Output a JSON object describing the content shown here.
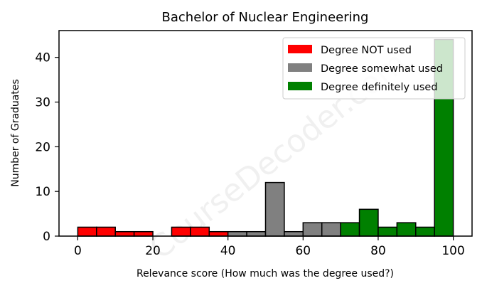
{
  "chart_data": {
    "type": "bar",
    "title": "Bachelor of Nuclear Engineering",
    "xlabel": "Relevance score (How much was the degree used?)",
    "ylabel": "Number of Graduates",
    "xlim": [
      -5,
      105
    ],
    "ylim": [
      0,
      46
    ],
    "bin_width": 5,
    "x_ticks": [
      0,
      20,
      40,
      60,
      80,
      100
    ],
    "y_ticks": [
      0,
      10,
      20,
      30,
      40
    ],
    "grid": false,
    "legend_position": "top-right",
    "watermark": "CourseDecoder.com",
    "series": [
      {
        "name": "Degree NOT used",
        "color": "#ff0000",
        "bins": [
          {
            "x": 0,
            "value": 2
          },
          {
            "x": 5,
            "value": 2
          },
          {
            "x": 10,
            "value": 1
          },
          {
            "x": 15,
            "value": 1
          },
          {
            "x": 20,
            "value": 0
          },
          {
            "x": 25,
            "value": 2
          },
          {
            "x": 30,
            "value": 2
          },
          {
            "x": 35,
            "value": 1
          }
        ]
      },
      {
        "name": "Degree somewhat used",
        "color": "#808080",
        "bins": [
          {
            "x": 40,
            "value": 1
          },
          {
            "x": 45,
            "value": 1
          },
          {
            "x": 50,
            "value": 12
          },
          {
            "x": 55,
            "value": 1
          },
          {
            "x": 60,
            "value": 3
          },
          {
            "x": 65,
            "value": 3
          }
        ]
      },
      {
        "name": "Degree definitely used",
        "color": "#008000",
        "bins": [
          {
            "x": 70,
            "value": 3
          },
          {
            "x": 75,
            "value": 6
          },
          {
            "x": 80,
            "value": 2
          },
          {
            "x": 85,
            "value": 3
          },
          {
            "x": 90,
            "value": 2
          },
          {
            "x": 95,
            "value": 44
          }
        ]
      }
    ]
  }
}
